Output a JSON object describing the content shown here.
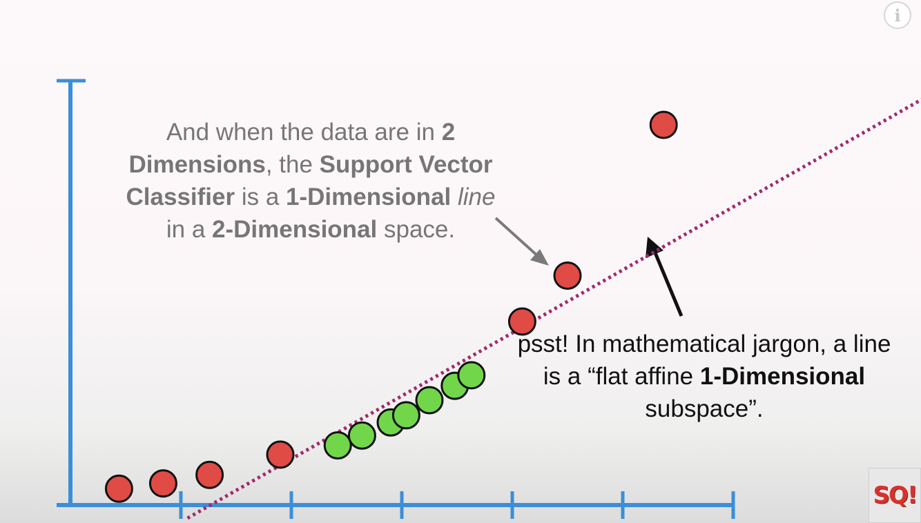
{
  "chart_data": {
    "type": "scatter",
    "title": "",
    "xlabel": "",
    "ylabel": "",
    "xlim": [
      0,
      6
    ],
    "ylim": [
      0,
      6.6
    ],
    "x_ticks": [
      1,
      2,
      3,
      4,
      5,
      6
    ],
    "grid": false,
    "legend": "none",
    "series": [
      {
        "color": "#e04b45",
        "points": [
          {
            "x": 0.44,
            "y": 0.25
          },
          {
            "x": 0.84,
            "y": 0.33
          },
          {
            "x": 1.26,
            "y": 0.46
          },
          {
            "x": 1.9,
            "y": 0.77
          },
          {
            "x": 4.09,
            "y": 2.8
          },
          {
            "x": 4.5,
            "y": 3.5
          },
          {
            "x": 5.37,
            "y": 5.8
          }
        ]
      },
      {
        "color": "#72d64a",
        "points": [
          {
            "x": 2.42,
            "y": 0.91
          },
          {
            "x": 2.64,
            "y": 1.06
          },
          {
            "x": 2.9,
            "y": 1.26
          },
          {
            "x": 3.04,
            "y": 1.37
          },
          {
            "x": 3.25,
            "y": 1.6
          },
          {
            "x": 3.48,
            "y": 1.82
          },
          {
            "x": 3.63,
            "y": 1.98
          }
        ]
      }
    ],
    "classifier_line": {
      "color": "#a02a6a",
      "style": "dotted",
      "from": {
        "x": 1.06,
        "y": -0.2
      },
      "to": {
        "x": 7.75,
        "y": 6.23
      }
    },
    "annotation_main": {
      "line1_a": "And when the data are in ",
      "line1_b": "2",
      "line2_a": "Dimensions",
      "line2_b": ", the ",
      "line2_c": "Support Vector",
      "line3_a": "Classifier",
      "line3_b": " is a ",
      "line3_c": "1-Dimensional",
      "line3_d": " line",
      "line4_a": "in a ",
      "line4_b": "2-Dimensional",
      "line4_c": " space."
    },
    "annotation_note": {
      "line1": "psst! In mathematical jargon, a line",
      "line2_a": "is a “flat affine ",
      "line2_b": "1-Dimensional",
      "line3": "subspace”."
    },
    "axis_color": "#3b8ed8"
  },
  "ui": {
    "info_icon": "info-icon",
    "info_glyph": "i",
    "logo_icon": "statquest-logo-icon",
    "logo_text": "SQ!"
  }
}
